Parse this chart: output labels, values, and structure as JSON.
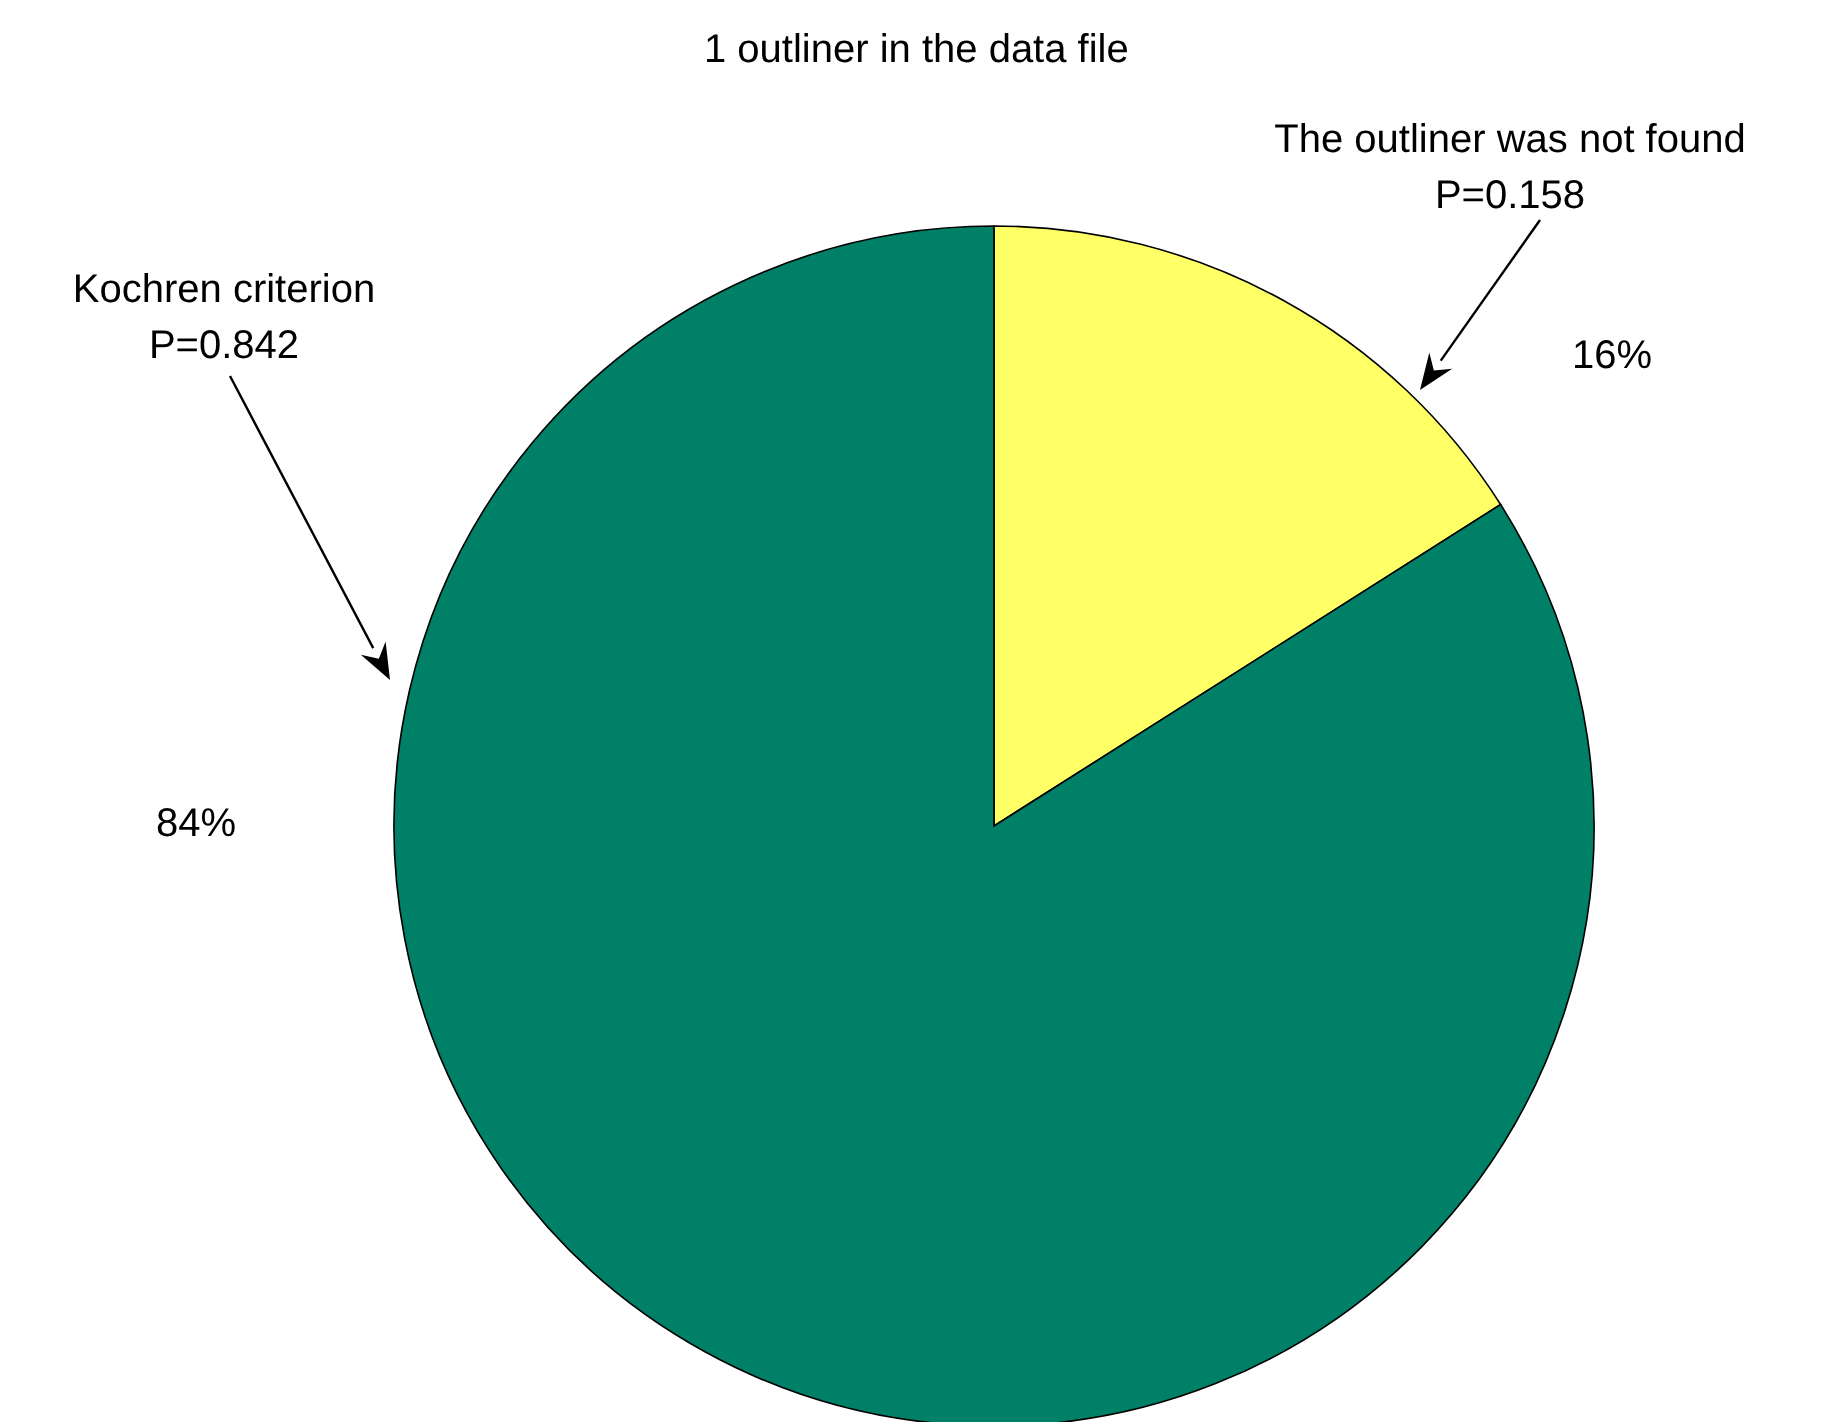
{
  "chart_data": {
    "type": "pie",
    "title": "1 outliner in the data file",
    "categories": [
      "The outliner was not found",
      "Kochren criterion"
    ],
    "values": [
      16,
      84
    ],
    "colors": [
      "#ffff66",
      "#008066"
    ],
    "value_labels": [
      "16%",
      "84%"
    ],
    "annotations": [
      "P=0.158",
      "P=0.842"
    ],
    "legend": false
  }
}
